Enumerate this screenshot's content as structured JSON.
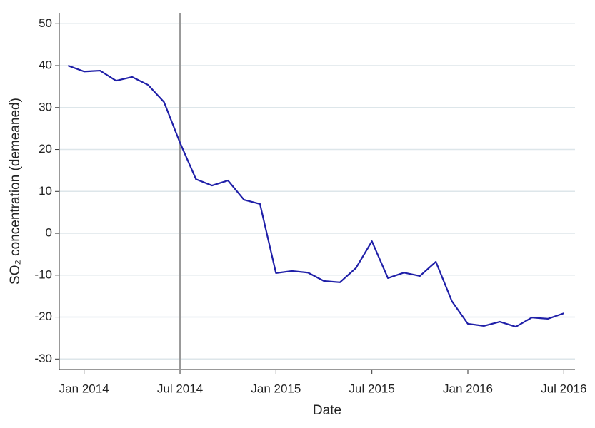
{
  "chart_data": {
    "type": "line",
    "x_label": "Date",
    "y_label": "SO₂ concentration (demeaned)",
    "x": [
      "2013-12",
      "2014-01",
      "2014-02",
      "2014-03",
      "2014-04",
      "2014-05",
      "2014-06",
      "2014-07",
      "2014-08",
      "2014-09",
      "2014-10",
      "2014-11",
      "2014-12",
      "2015-01",
      "2015-02",
      "2015-03",
      "2015-04",
      "2015-05",
      "2015-06",
      "2015-07",
      "2015-08",
      "2015-09",
      "2015-10",
      "2015-11",
      "2015-12",
      "2016-01",
      "2016-02",
      "2016-03",
      "2016-04",
      "2016-05",
      "2016-06",
      "2016-07"
    ],
    "series": [
      {
        "color": "#1f1fa8",
        "values": [
          40.0,
          38.6,
          38.8,
          36.4,
          37.3,
          35.4,
          31.3,
          21.6,
          12.9,
          11.4,
          12.6,
          8.0,
          7.0,
          -9.5,
          -9.0,
          -9.4,
          -11.4,
          -11.7,
          -8.3,
          -1.9,
          -10.7,
          -9.4,
          -10.2,
          -6.8,
          -16.2,
          -21.6,
          -22.1,
          -21.1,
          -22.3,
          -20.1,
          -20.4,
          -19.1
        ]
      }
    ],
    "xlim": [
      "2013-12",
      "2016-07"
    ],
    "xticks": [
      {
        "value": "2014-01",
        "label": "Jan 2014"
      },
      {
        "value": "2014-07",
        "label": "Jul 2014"
      },
      {
        "value": "2015-01",
        "label": "Jan 2015"
      },
      {
        "value": "2015-07",
        "label": "Jul 2015"
      },
      {
        "value": "2016-01",
        "label": "Jan 2016"
      },
      {
        "value": "2016-07",
        "label": "Jul 2016"
      }
    ],
    "ylim": [
      -32.5,
      52.6
    ],
    "yticks": [
      -30,
      -20,
      -10,
      0,
      10,
      20,
      30,
      40,
      50
    ],
    "grid": true,
    "event_line": {
      "x": "2014-07",
      "color": "#999999"
    }
  }
}
